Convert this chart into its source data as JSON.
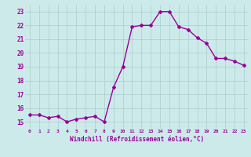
{
  "x": [
    0,
    1,
    2,
    3,
    4,
    5,
    6,
    7,
    8,
    9,
    10,
    11,
    12,
    13,
    14,
    15,
    16,
    17,
    18,
    19,
    20,
    21,
    22,
    23
  ],
  "y": [
    15.5,
    15.5,
    15.3,
    15.4,
    15.0,
    15.2,
    15.3,
    15.4,
    15.0,
    17.5,
    19.0,
    21.9,
    22.0,
    22.0,
    23.0,
    23.0,
    21.9,
    21.7,
    21.1,
    20.7,
    19.6,
    19.6,
    19.4,
    19.1
  ],
  "line_color": "#990099",
  "marker": "D",
  "marker_size": 2.0,
  "xlabel": "Windchill (Refroidissement éolien,°C)",
  "ylim": [
    14.5,
    23.5
  ],
  "xlim": [
    -0.5,
    23.5
  ],
  "yticks": [
    15,
    16,
    17,
    18,
    19,
    20,
    21,
    22,
    23
  ],
  "xticks": [
    0,
    1,
    2,
    3,
    4,
    5,
    6,
    7,
    8,
    9,
    10,
    11,
    12,
    13,
    14,
    15,
    16,
    17,
    18,
    19,
    20,
    21,
    22,
    23
  ],
  "xtick_labels": [
    "0",
    "1",
    "2",
    "3",
    "4",
    "5",
    "6",
    "7",
    "8",
    "9",
    "10",
    "11",
    "12",
    "13",
    "14",
    "15",
    "16",
    "17",
    "18",
    "19",
    "20",
    "21",
    "22",
    "23"
  ],
  "background_color": "#cdeaea",
  "grid_color": "#aacccc",
  "tick_color": "#990099",
  "label_color": "#990099",
  "linewidth": 1.0
}
